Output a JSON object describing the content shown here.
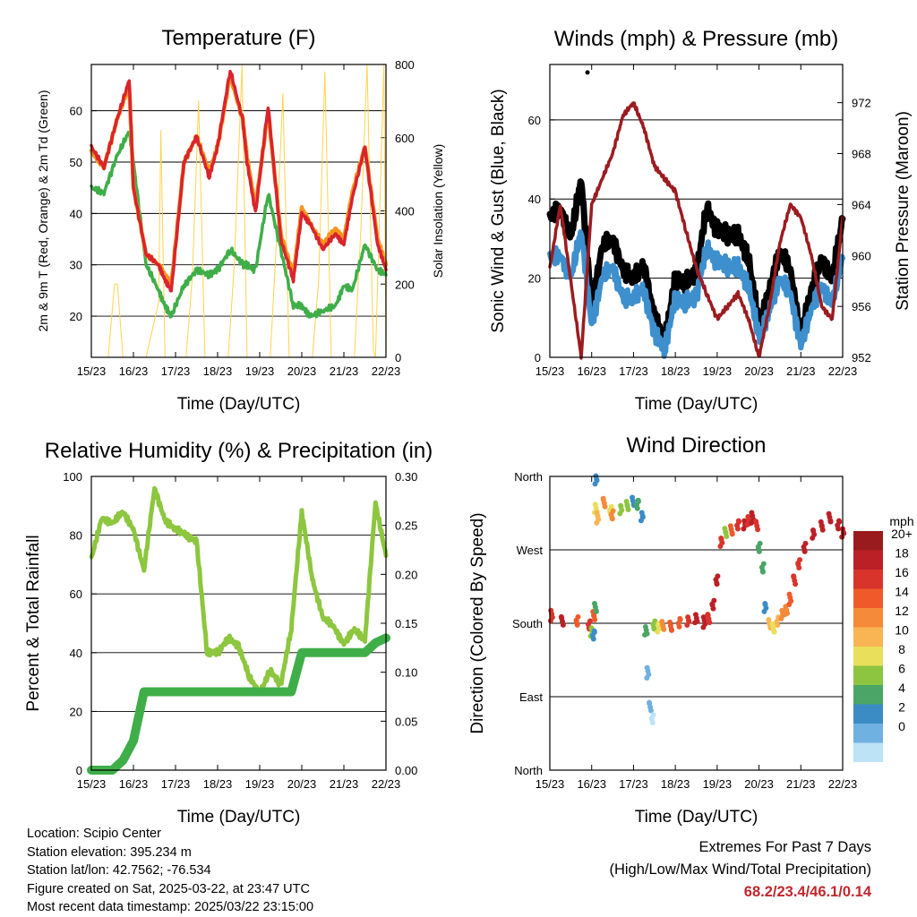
{
  "charts": [
    {
      "title": "Temperature (F)",
      "xlabel": "Time (Day/UTC)",
      "ylabel_left": "2m & 9m T (Red, Orange) & 2m Td (Green)",
      "ylabel_right": "Solar Insolation (Yellow)"
    },
    {
      "title": "Winds (mph) & Pressure (mb)",
      "xlabel": "Time (Day/UTC)",
      "ylabel_left": "Sonic Wind & Gust (Blue, Black)",
      "ylabel_right": "Station Pressure (Maroon)"
    },
    {
      "title": "Relative Humidity (%) & Precipitation (in)",
      "xlabel": "Time (Day/UTC)",
      "ylabel_left": "Percent & Total Rainfall",
      "ylabel_right": ""
    },
    {
      "title": "Wind Direction",
      "xlabel": "Time (Day/UTC)",
      "ylabel_left": "Direction (Colored By Speed)",
      "ylabel_right": ""
    }
  ],
  "colorbar": {
    "title": "mph",
    "labels": [
      "20+",
      "18",
      "16",
      "14",
      "12",
      "10",
      "8",
      "6",
      "4",
      "2",
      "0"
    ],
    "colors": [
      "#9a1b1e",
      "#bb2027",
      "#d9342b",
      "#f05a2a",
      "#f58a3a",
      "#f9b554",
      "#e9df5b",
      "#8dc540",
      "#4aa566",
      "#3b8cc5",
      "#6fb1e0",
      "#bde3f7"
    ]
  },
  "info": {
    "location": "Location: Scipio Center",
    "elevation": "Station elevation: 395.234 m",
    "latlon": "Station lat/lon: 42.7562; -76.534",
    "created": "Figure created on Sat, 2025-03-22, at 23:47 UTC",
    "recent": "Most recent data timestamp: 2025/03/22 23:15:00"
  },
  "extremes": {
    "line1": "Extremes For Past 7 Days",
    "line2": "(High/Low/Max Wind/Total Precipitation)",
    "values": "68.2/23.4/46.1/0.14"
  },
  "chart_data": [
    {
      "type": "line",
      "title": "Temperature (F)",
      "x_ticks": [
        "15/23",
        "16/23",
        "17/23",
        "18/23",
        "19/23",
        "20/23",
        "21/23",
        "22/23"
      ],
      "x": [
        0,
        0.3,
        0.6,
        0.9,
        1.0,
        1.3,
        1.6,
        1.75,
        1.9,
        2.2,
        2.5,
        2.8,
        3.0,
        3.3,
        3.6,
        3.7,
        3.9,
        4.2,
        4.5,
        4.8,
        5.0,
        5.2,
        5.5,
        5.8,
        6.0,
        6.2,
        6.5,
        6.8,
        7.0
      ],
      "ylim_left": [
        12,
        69
      ],
      "yticks_left": [
        20,
        30,
        40,
        50,
        60
      ],
      "ylim_right": [
        0,
        800
      ],
      "yticks_right": [
        0,
        200,
        400,
        600,
        800
      ],
      "series": [
        {
          "name": "2m T",
          "color": "#d9232e",
          "values": [
            53,
            49,
            58,
            66,
            45,
            32,
            30,
            27,
            25,
            50,
            55,
            47,
            53,
            68,
            58,
            50,
            40,
            61,
            35,
            27,
            40,
            38,
            33,
            36,
            34,
            43,
            53,
            34,
            29
          ]
        },
        {
          "name": "9m T",
          "color": "#f7941d",
          "values": [
            52,
            49,
            58,
            65,
            45,
            32,
            30,
            28,
            26,
            50,
            55,
            48,
            53,
            67,
            58,
            51,
            41,
            60,
            36,
            28,
            41,
            38,
            34,
            37,
            35,
            44,
            53,
            35,
            30
          ]
        },
        {
          "name": "2m Td",
          "color": "#3fae49",
          "values": [
            45,
            44,
            51,
            56,
            50,
            30,
            25,
            22,
            20,
            26,
            29,
            28,
            29,
            33,
            30,
            30,
            29,
            44,
            33,
            22,
            22,
            20,
            21,
            22,
            26,
            25,
            34,
            29,
            28
          ]
        },
        {
          "name": "Solar Insolation",
          "color": "#ffd34d",
          "axis": "right",
          "x": [
            0.0,
            0.4,
            0.55,
            0.62,
            0.75,
            1.0,
            1.3,
            1.6,
            1.65,
            1.75,
            1.9,
            2.25,
            2.4,
            2.55,
            2.7,
            2.95,
            3.25,
            3.4,
            3.58,
            3.7,
            4.25,
            4.4,
            4.55,
            4.7,
            5.25,
            5.4,
            5.55,
            5.7,
            6.25,
            6.4,
            6.55,
            6.7,
            6.75,
            6.95,
            7.0
          ],
          "values": [
            0,
            0,
            200,
            200,
            0,
            0,
            0,
            150,
            620,
            0,
            0,
            0,
            220,
            700,
            0,
            0,
            0,
            260,
            800,
            0,
            0,
            320,
            720,
            0,
            0,
            210,
            780,
            0,
            0,
            340,
            800,
            20,
            0,
            800,
            0
          ]
        }
      ]
    },
    {
      "type": "line",
      "title": "Winds (mph) & Pressure (mb)",
      "x_ticks": [
        "15/23",
        "16/23",
        "17/23",
        "18/23",
        "19/23",
        "20/23",
        "21/23",
        "22/23"
      ],
      "x": [
        0,
        0.25,
        0.5,
        0.75,
        1.0,
        1.25,
        1.5,
        1.75,
        2.0,
        2.25,
        2.5,
        2.75,
        3.0,
        3.25,
        3.5,
        3.75,
        4.0,
        4.25,
        4.5,
        4.75,
        5.0,
        5.25,
        5.5,
        5.75,
        6.0,
        6.25,
        6.5,
        6.75,
        7.0
      ],
      "ylim_left": [
        0,
        74
      ],
      "yticks_left": [
        0,
        20,
        40,
        60
      ],
      "ylim_right": [
        952,
        975
      ],
      "yticks_right": [
        952,
        956,
        960,
        964,
        968,
        972
      ],
      "series": [
        {
          "name": "Sonic Wind",
          "color": "#3d8fcd",
          "values": [
            25,
            26,
            20,
            32,
            8,
            20,
            23,
            15,
            15,
            17,
            6,
            2,
            15,
            14,
            15,
            28,
            24,
            23,
            23,
            18,
            5,
            12,
            20,
            16,
            3,
            12,
            18,
            14,
            25
          ]
        },
        {
          "name": "Gust",
          "color": "#000000",
          "values": [
            35,
            38,
            30,
            45,
            12,
            28,
            30,
            22,
            20,
            23,
            10,
            4,
            20,
            19,
            21,
            38,
            32,
            31,
            31,
            25,
            8,
            17,
            27,
            22,
            5,
            17,
            25,
            20,
            35
          ]
        },
        {
          "name": "Station Pressure",
          "color": "#9b1c20",
          "axis": "right",
          "values": [
            959,
            964,
            958,
            952,
            964,
            966,
            968,
            971,
            972,
            970,
            967,
            966,
            965,
            962,
            959,
            957,
            955,
            956,
            957,
            955,
            952,
            956,
            961,
            964,
            963,
            960,
            956,
            955,
            963
          ]
        }
      ]
    },
    {
      "type": "line",
      "title": "Relative Humidity (%) & Precipitation (in)",
      "x_ticks": [
        "15/23",
        "16/23",
        "17/23",
        "18/23",
        "19/23",
        "20/23",
        "21/23",
        "22/23"
      ],
      "x": [
        0,
        0.25,
        0.5,
        0.75,
        1.0,
        1.25,
        1.5,
        1.75,
        2.0,
        2.25,
        2.5,
        2.75,
        3.0,
        3.25,
        3.5,
        3.75,
        4.0,
        4.25,
        4.5,
        4.75,
        5.0,
        5.25,
        5.5,
        5.75,
        6.0,
        6.25,
        6.5,
        6.75,
        7.0
      ],
      "ylim_left": [
        0,
        100
      ],
      "yticks_left": [
        0,
        20,
        40,
        60,
        80,
        100
      ],
      "ylim_right": [
        0,
        0.3
      ],
      "yticks_right": [
        0.0,
        0.05,
        0.1,
        0.15,
        0.2,
        0.25,
        0.3
      ],
      "series": [
        {
          "name": "Relative Humidity",
          "color": "#8dc63f",
          "values": [
            72,
            86,
            84,
            88,
            82,
            68,
            96,
            85,
            82,
            80,
            78,
            40,
            40,
            45,
            42,
            32,
            26,
            34,
            29,
            48,
            88,
            65,
            52,
            49,
            43,
            48,
            44,
            91,
            73
          ]
        },
        {
          "name": "Total Precipitation",
          "color": "#3fae49",
          "axis": "right",
          "values": [
            0.0,
            0.0,
            0.0,
            0.01,
            0.03,
            0.08,
            0.08,
            0.08,
            0.08,
            0.08,
            0.08,
            0.08,
            0.08,
            0.08,
            0.08,
            0.08,
            0.08,
            0.08,
            0.08,
            0.08,
            0.12,
            0.12,
            0.12,
            0.12,
            0.12,
            0.12,
            0.12,
            0.13,
            0.135
          ]
        }
      ]
    },
    {
      "type": "scatter",
      "title": "Wind Direction",
      "x_ticks": [
        "15/23",
        "16/23",
        "17/23",
        "18/23",
        "19/23",
        "20/23",
        "21/23",
        "22/23"
      ],
      "y_ticks": [
        "North",
        "East",
        "South",
        "West",
        "North"
      ],
      "color_by": "speed (mph)",
      "points": [
        [
          0.05,
          190,
          19
        ],
        [
          0.3,
          185,
          20
        ],
        [
          0.65,
          185,
          17
        ],
        [
          0.95,
          180,
          19
        ],
        [
          1.0,
          170,
          9
        ],
        [
          1.05,
          190,
          16
        ],
        [
          1.1,
          200,
          6
        ],
        [
          1.05,
          165,
          4
        ],
        [
          1.1,
          355,
          5
        ],
        [
          1.1,
          320,
          10
        ],
        [
          1.15,
          310,
          13
        ],
        [
          1.3,
          330,
          15
        ],
        [
          1.45,
          320,
          11
        ],
        [
          1.5,
          315,
          14
        ],
        [
          1.7,
          320,
          8
        ],
        [
          1.85,
          325,
          9
        ],
        [
          2.0,
          330,
          5
        ],
        [
          2.1,
          325,
          7
        ],
        [
          2.2,
          310,
          4
        ],
        [
          2.3,
          170,
          6
        ],
        [
          2.35,
          120,
          3
        ],
        [
          2.4,
          80,
          2
        ],
        [
          2.45,
          65,
          1
        ],
        [
          2.5,
          180,
          8
        ],
        [
          2.6,
          175,
          10
        ],
        [
          2.7,
          178,
          14
        ],
        [
          2.9,
          177,
          16
        ],
        [
          3.1,
          180,
          17
        ],
        [
          3.3,
          182,
          19
        ],
        [
          3.5,
          185,
          20
        ],
        [
          3.7,
          182,
          20
        ],
        [
          3.8,
          188,
          19
        ],
        [
          3.9,
          205,
          20
        ],
        [
          4.0,
          235,
          20
        ],
        [
          4.1,
          280,
          18
        ],
        [
          4.2,
          292,
          9
        ],
        [
          4.35,
          295,
          16
        ],
        [
          4.5,
          300,
          18
        ],
        [
          4.65,
          300,
          20
        ],
        [
          4.75,
          305,
          19
        ],
        [
          4.85,
          310,
          20
        ],
        [
          4.95,
          302,
          18
        ],
        [
          5.0,
          275,
          6
        ],
        [
          5.1,
          250,
          7
        ],
        [
          5.15,
          200,
          4
        ],
        [
          5.25,
          180,
          12
        ],
        [
          5.35,
          175,
          11
        ],
        [
          5.45,
          182,
          13
        ],
        [
          5.55,
          190,
          15
        ],
        [
          5.65,
          195,
          14
        ],
        [
          5.75,
          210,
          16
        ],
        [
          5.85,
          235,
          18
        ],
        [
          5.95,
          255,
          19
        ],
        [
          6.1,
          275,
          20
        ],
        [
          6.3,
          290,
          20
        ],
        [
          6.5,
          300,
          20
        ],
        [
          6.7,
          310,
          20
        ],
        [
          6.9,
          300,
          20
        ],
        [
          7.0,
          290,
          20
        ]
      ]
    }
  ]
}
